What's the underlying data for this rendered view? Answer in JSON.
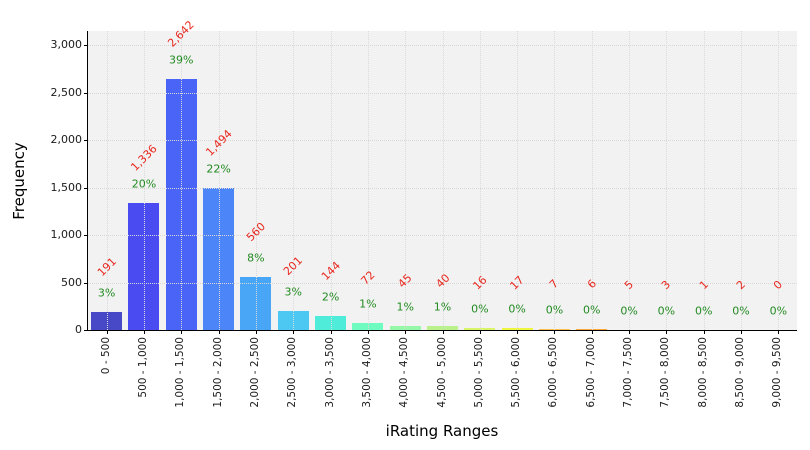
{
  "figure": {
    "xlabel": "iRating Ranges",
    "ylabel": "Frequency"
  },
  "chart_data": {
    "type": "bar",
    "title": "",
    "xlabel": "iRating Ranges",
    "ylabel": "Frequency",
    "categories": [
      "0 - 500",
      "500 - 1,000",
      "1,000 - 1,500",
      "1,500 - 2,000",
      "2,000 - 2,500",
      "2,500 - 3,000",
      "3,000 - 3,500",
      "3,500 - 4,000",
      "4,000 - 4,500",
      "4,500 - 5,000",
      "5,000 - 5,500",
      "5,500 - 6,000",
      "6,000 - 6,500",
      "6,500 - 7,000",
      "7,000 - 7,500",
      "7,500 - 8,000",
      "8,000 - 8,500",
      "8,500 - 9,000",
      "9,000 - 9,500"
    ],
    "values": [
      191,
      1336,
      2642,
      1494,
      560,
      201,
      144,
      72,
      45,
      40,
      16,
      17,
      7,
      6,
      5,
      3,
      1,
      2,
      0
    ],
    "value_labels": [
      "191",
      "1,336",
      "2,642",
      "1,494",
      "560",
      "201",
      "144",
      "72",
      "45",
      "40",
      "16",
      "17",
      "7",
      "6",
      "5",
      "3",
      "1",
      "2",
      "0"
    ],
    "percent_labels": [
      "3%",
      "20%",
      "39%",
      "22%",
      "8%",
      "3%",
      "2%",
      "1%",
      "1%",
      "1%",
      "0%",
      "0%",
      "0%",
      "0%",
      "0%",
      "0%",
      "0%",
      "0%",
      "0%"
    ],
    "bar_colors": [
      "#4749c6",
      "#4b4bf2",
      "#4a64f7",
      "#4b85f8",
      "#49a5f6",
      "#4cc8f3",
      "#4fecd9",
      "#6efcc0",
      "#96f7a8",
      "#b9f18c",
      "#d9f466",
      "#eef63f",
      "#fbbe4c",
      "#fda63f",
      "#fe8c33",
      "#ff7028",
      "#ff531d",
      "#ff3612",
      "#ff1708"
    ],
    "y_ticks": [
      "0",
      "500",
      "1,000",
      "1,500",
      "2,000",
      "2,500",
      "3,000"
    ],
    "ylim": [
      0,
      3150
    ],
    "grid": "dotted-horizontal-and-vertical",
    "legend": "none",
    "plot_bg_color": "#f2f2f2",
    "value_label_color": "#e8281e",
    "percent_label_color": "#228b22"
  }
}
